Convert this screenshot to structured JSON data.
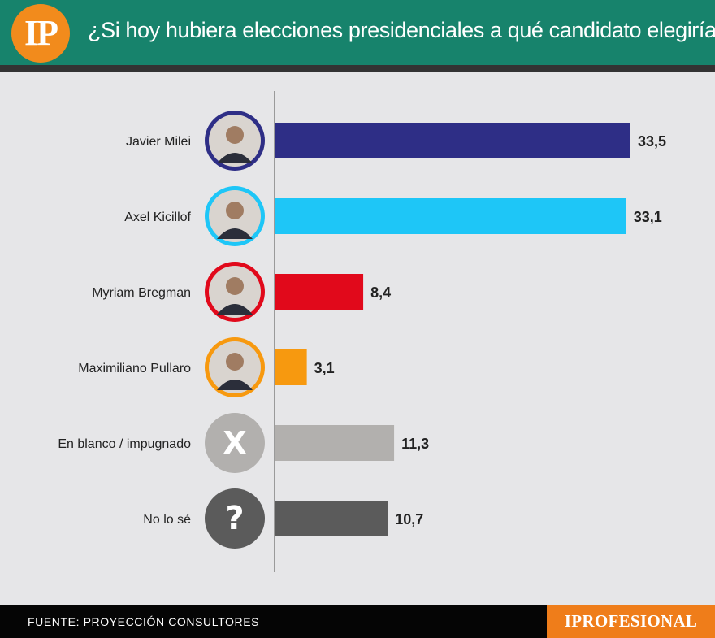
{
  "header": {
    "logo_text": "IP",
    "title": "¿Si hoy hubiera elecciones presidenciales a qué candidato elegiría?"
  },
  "footer": {
    "source": "FUENTE: PROYECCIÓN CONSULTORES",
    "brand": "IPROFESIONAL"
  },
  "colors": {
    "header_bg": "#17836c",
    "accent_orange": "#ef7d1a",
    "background": "#e6e6e8"
  },
  "chart_data": {
    "type": "bar",
    "orientation": "horizontal",
    "title": "¿Si hoy hubiera elecciones presidenciales a qué candidato elegiría?",
    "categories": [
      "Javier Milei",
      "Axel Kicillof",
      "Myriam Bregman",
      "Maximiliano Pullaro",
      "En blanco / impugnado",
      "No lo sé"
    ],
    "values": [
      33.5,
      33.1,
      8.4,
      3.1,
      11.3,
      10.7
    ],
    "value_labels": [
      "33,5",
      "33,1",
      "8,4",
      "3,1",
      "11,3",
      "10,7"
    ],
    "colors": [
      "#2e2e86",
      "#1ec6f7",
      "#e1091b",
      "#f7990f",
      "#b2b0ae",
      "#5b5b5b"
    ],
    "icons": [
      "avatar-photo",
      "avatar-photo",
      "avatar-photo",
      "avatar-photo",
      "x-icon",
      "question-icon"
    ],
    "icon_glyphs": [
      "",
      "",
      "",
      "",
      "X",
      "?"
    ],
    "xlim": [
      0,
      33.5
    ],
    "grid": false,
    "legend": "none"
  }
}
